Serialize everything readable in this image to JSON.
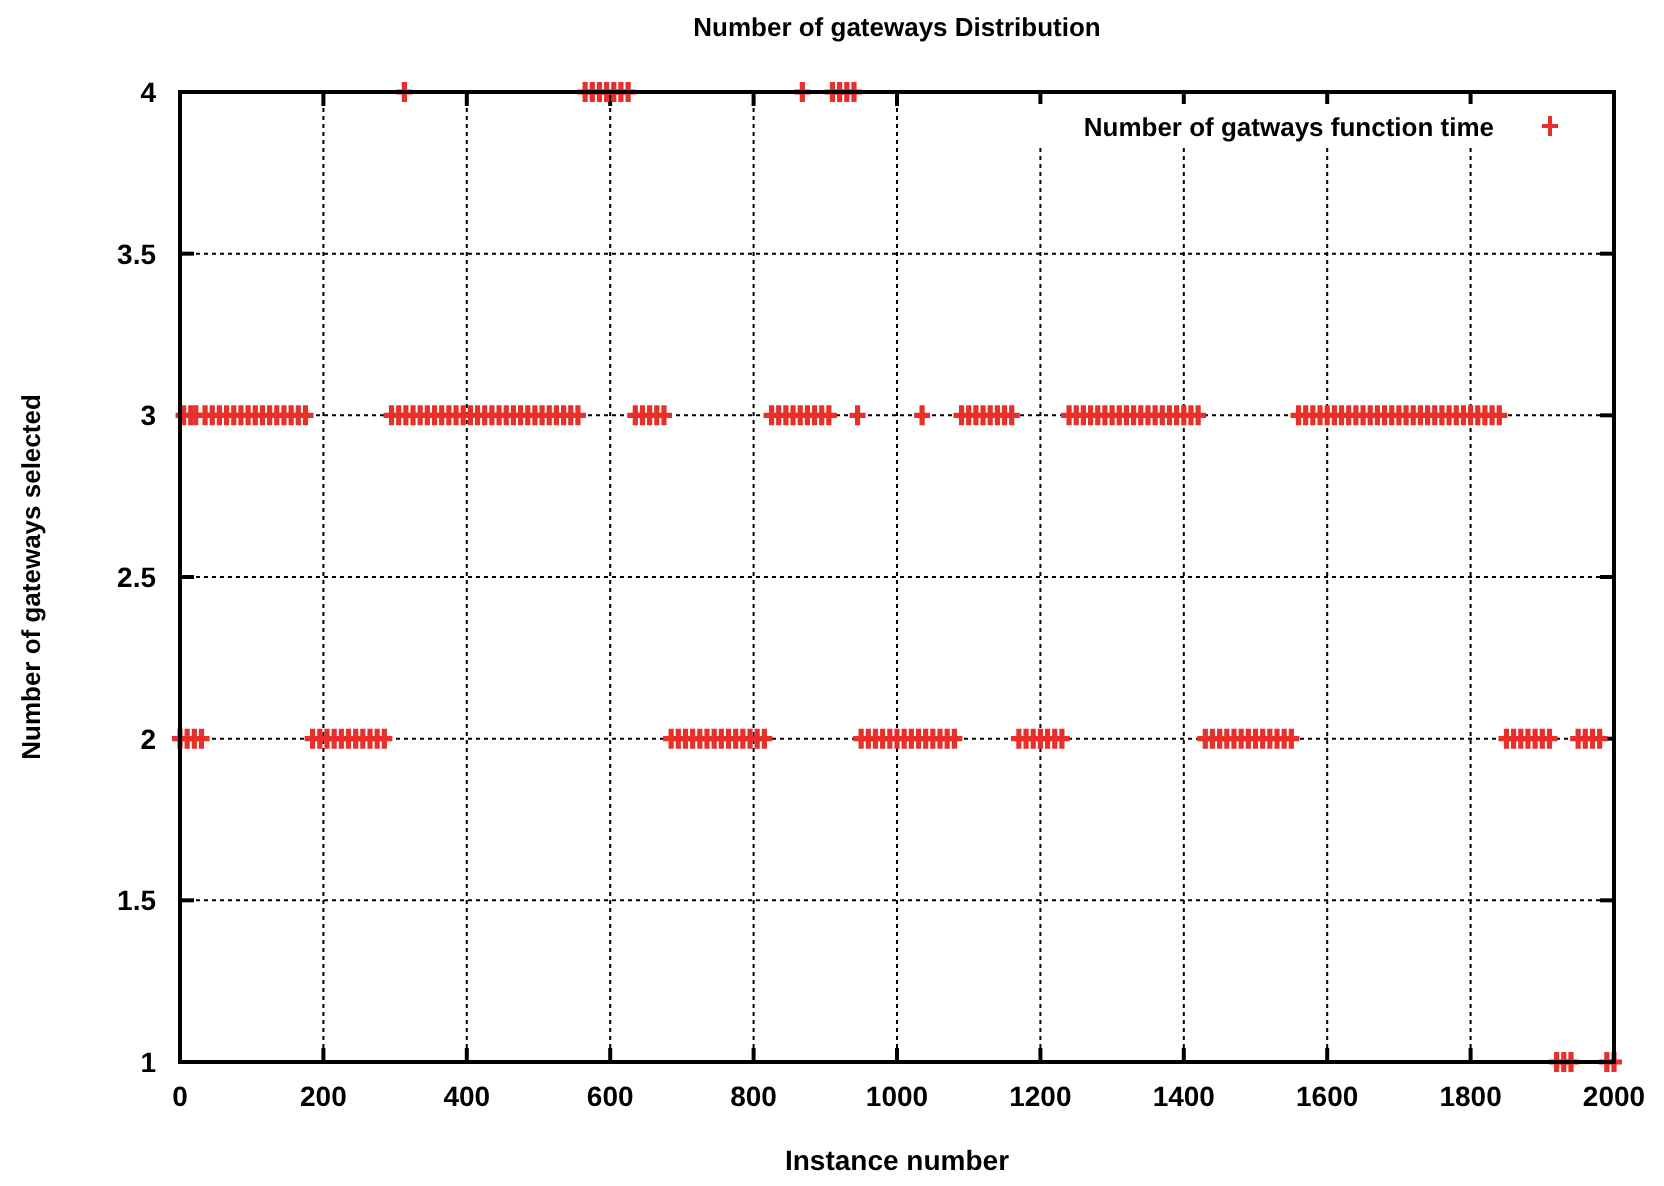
{
  "chart_data": {
    "type": "scatter",
    "title": "Number of gateways Distribution",
    "xlabel": "Instance number",
    "ylabel": "Number of gateways selected",
    "xlim": [
      0,
      2000
    ],
    "xticks": [
      0,
      200,
      400,
      600,
      800,
      1000,
      1200,
      1400,
      1600,
      1800,
      2000
    ],
    "ylim": [
      1,
      4
    ],
    "yticks": [
      1,
      1.5,
      2,
      2.5,
      3,
      3.5,
      4
    ],
    "grid": true,
    "legend": "top right",
    "marker": "cross",
    "series": [
      {
        "name": "Number of gatways function time",
        "color": "#e8302a",
        "x": [
          5,
          15,
          22,
          0,
          10,
          20,
          30,
          35,
          45,
          55,
          65,
          75,
          85,
          95,
          105,
          115,
          125,
          135,
          145,
          155,
          165,
          175,
          185,
          195,
          205,
          215,
          225,
          235,
          245,
          255,
          265,
          275,
          285,
          295,
          305,
          315,
          325,
          335,
          345,
          355,
          365,
          375,
          385,
          395,
          405,
          415,
          425,
          435,
          445,
          455,
          465,
          475,
          485,
          495,
          505,
          515,
          525,
          535,
          545,
          555,
          313,
          565,
          575,
          585,
          595,
          605,
          615,
          625,
          635,
          645,
          655,
          665,
          675,
          685,
          695,
          705,
          715,
          725,
          735,
          745,
          755,
          765,
          775,
          785,
          795,
          805,
          815,
          825,
          835,
          845,
          855,
          865,
          875,
          885,
          895,
          905,
          868,
          910,
          920,
          930,
          940,
          945,
          950,
          960,
          970,
          980,
          990,
          1000,
          1010,
          1020,
          1030,
          1040,
          1050,
          1060,
          1070,
          1080,
          1035,
          1090,
          1100,
          1110,
          1120,
          1130,
          1140,
          1150,
          1160,
          1170,
          1180,
          1190,
          1200,
          1210,
          1220,
          1230,
          1240,
          1250,
          1260,
          1270,
          1280,
          1290,
          1300,
          1310,
          1320,
          1330,
          1340,
          1350,
          1360,
          1370,
          1380,
          1390,
          1400,
          1410,
          1420,
          1430,
          1440,
          1450,
          1460,
          1470,
          1480,
          1490,
          1500,
          1510,
          1520,
          1530,
          1540,
          1550,
          1560,
          1570,
          1580,
          1590,
          1600,
          1610,
          1620,
          1630,
          1640,
          1650,
          1660,
          1670,
          1680,
          1690,
          1700,
          1710,
          1720,
          1730,
          1740,
          1750,
          1760,
          1770,
          1780,
          1790,
          1800,
          1810,
          1820,
          1830,
          1840,
          1850,
          1860,
          1870,
          1880,
          1890,
          1900,
          1910,
          1920,
          1930,
          1940,
          1950,
          1960,
          1970,
          1980,
          1990,
          2000
        ],
        "values": [
          3,
          3,
          3,
          2,
          2,
          2,
          2,
          3,
          3,
          3,
          3,
          3,
          3,
          3,
          3,
          3,
          3,
          3,
          3,
          3,
          3,
          3,
          2,
          2,
          2,
          2,
          2,
          2,
          2,
          2,
          2,
          2,
          2,
          3,
          3,
          3,
          3,
          3,
          3,
          3,
          3,
          3,
          3,
          3,
          3,
          3,
          3,
          3,
          3,
          3,
          3,
          3,
          3,
          3,
          3,
          3,
          3,
          3,
          3,
          3,
          4,
          4,
          4,
          4,
          4,
          4,
          4,
          4,
          3,
          3,
          3,
          3,
          3,
          2,
          2,
          2,
          2,
          2,
          2,
          2,
          2,
          2,
          2,
          2,
          2,
          2,
          2,
          3,
          3,
          3,
          3,
          3,
          3,
          3,
          3,
          3,
          4,
          4,
          4,
          4,
          4,
          3,
          2,
          2,
          2,
          2,
          2,
          2,
          2,
          2,
          2,
          2,
          2,
          2,
          2,
          2,
          3,
          3,
          3,
          3,
          3,
          3,
          3,
          3,
          3,
          2,
          2,
          2,
          2,
          2,
          2,
          2,
          3,
          3,
          3,
          3,
          3,
          3,
          3,
          3,
          3,
          3,
          3,
          3,
          3,
          3,
          3,
          3,
          3,
          3,
          3,
          2,
          2,
          2,
          2,
          2,
          2,
          2,
          2,
          2,
          2,
          2,
          2,
          2,
          3,
          3,
          3,
          3,
          3,
          3,
          3,
          3,
          3,
          3,
          3,
          3,
          3,
          3,
          3,
          3,
          3,
          3,
          3,
          3,
          3,
          3,
          3,
          3,
          3,
          3,
          3,
          3,
          3,
          2,
          2,
          2,
          2,
          2,
          2,
          2,
          1,
          1,
          1,
          2,
          2,
          2,
          2,
          1,
          1
        ]
      }
    ]
  }
}
